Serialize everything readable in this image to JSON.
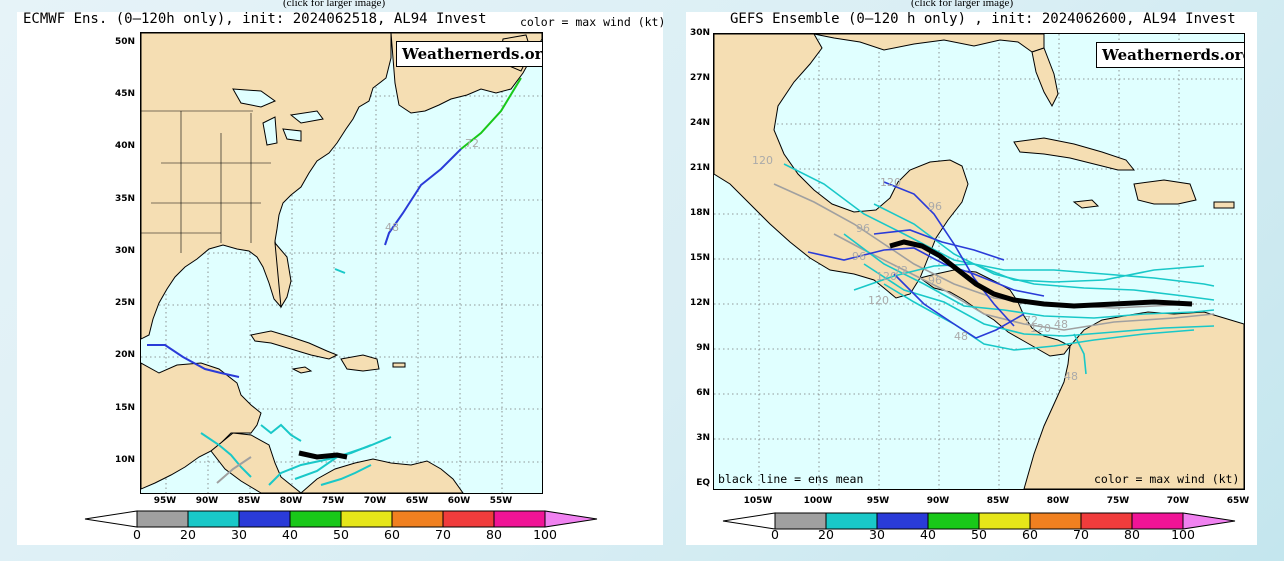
{
  "left": {
    "caption": "(click for larger image)",
    "title": "ECMWF Ens. (0–120h only), init: 2024062518, AL94 Invest",
    "color_label": "color = max wind (kt)",
    "brand": "Weathernerds.org",
    "lat_labels": [
      "50N",
      "45N",
      "40N",
      "35N",
      "30N",
      "25N",
      "20N",
      "15N",
      "10N"
    ],
    "lon_labels": [
      "95W",
      "90W",
      "85W",
      "80W",
      "75W",
      "70W",
      "65W",
      "60W",
      "55W"
    ],
    "track_labels": [
      "72",
      "48"
    ]
  },
  "right": {
    "caption": "(click for larger image)",
    "title": "GEFS Ensemble (0–120 h only) , init: 2024062600, AL94 Invest",
    "brand": "Weathernerds.org",
    "lat_labels": [
      "30N",
      "27N",
      "24N",
      "21N",
      "18N",
      "15N",
      "12N",
      "9N",
      "6N",
      "3N",
      "EQ"
    ],
    "lon_labels": [
      "105W",
      "100W",
      "95W",
      "90W",
      "85W",
      "80W",
      "75W",
      "70W",
      "65W"
    ],
    "note_left": "black line = ens mean",
    "note_right": "color = max wind (kt)",
    "track_labels": [
      "120",
      "120",
      "96",
      "96",
      "96",
      "96",
      "120",
      "72",
      "48",
      "72",
      "120",
      "48",
      "120",
      "48"
    ]
  },
  "scale": {
    "values": [
      "0",
      "20",
      "30",
      "40",
      "50",
      "60",
      "70",
      "80",
      "100"
    ],
    "colors": [
      "#ffffff",
      "#a0a0a0",
      "#19c8c8",
      "#2a3bd8",
      "#19c819",
      "#e6e619",
      "#f08020",
      "#f03c3c",
      "#f01496",
      "#f082f0"
    ]
  }
}
